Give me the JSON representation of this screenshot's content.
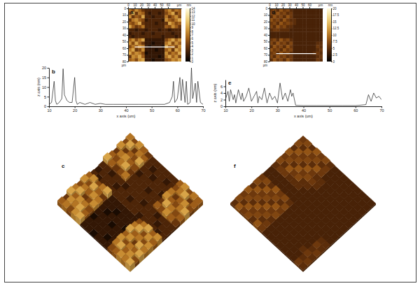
{
  "chart_data": [
    {
      "type": "heatmap",
      "panel": "a",
      "panel_3d": "c",
      "x_label": "µm",
      "y_label": "µm",
      "xlim": [
        0,
        80
      ],
      "ylim": [
        0,
        80
      ],
      "xticks": [
        0,
        10,
        20,
        30,
        40,
        50,
        60
      ],
      "yticks": [
        0,
        10,
        20,
        30,
        40,
        50,
        60,
        70,
        80
      ],
      "colorbar": {
        "label": "nm",
        "range": [
          0,
          14
        ],
        "ticks": [
          0,
          1,
          2,
          3,
          4,
          5,
          6,
          7,
          8,
          9,
          10,
          11,
          12,
          13,
          14
        ]
      },
      "profile": {
        "x": [
          10,
          70
        ],
        "y": 58
      },
      "cells": [
        [
          7,
          5,
          8,
          6,
          4,
          3,
          3,
          3,
          3,
          3,
          3,
          6,
          8,
          5,
          7,
          6
        ],
        [
          5,
          9,
          4,
          7,
          6,
          3,
          2,
          3,
          3,
          2,
          3,
          5,
          7,
          9,
          4,
          6
        ],
        [
          8,
          4,
          6,
          5,
          9,
          3,
          3,
          2,
          3,
          3,
          3,
          7,
          4,
          6,
          8,
          5
        ],
        [
          4,
          7,
          8,
          6,
          5,
          2,
          3,
          3,
          3,
          3,
          2,
          8,
          6,
          5,
          7,
          9
        ],
        [
          6,
          5,
          7,
          9,
          4,
          3,
          3,
          3,
          2,
          3,
          3,
          4,
          9,
          7,
          5,
          6
        ],
        [
          9,
          6,
          4,
          5,
          7,
          3,
          3,
          3,
          3,
          3,
          3,
          6,
          5,
          8,
          6,
          4
        ],
        [
          3,
          3,
          2,
          3,
          3,
          2,
          3,
          3,
          3,
          2,
          3,
          3,
          2,
          3,
          3,
          3
        ],
        [
          2,
          3,
          3,
          3,
          2,
          3,
          3,
          2,
          3,
          3,
          3,
          3,
          3,
          2,
          3,
          3
        ],
        [
          3,
          2,
          3,
          3,
          3,
          3,
          3,
          3,
          3,
          3,
          2,
          3,
          3,
          3,
          2,
          3
        ],
        [
          6,
          8,
          5,
          7,
          9,
          2,
          2,
          2,
          2,
          2,
          2,
          5,
          7,
          9,
          6,
          8
        ],
        [
          8,
          5,
          9,
          6,
          4,
          2,
          2,
          1,
          2,
          2,
          2,
          7,
          9,
          5,
          8,
          6
        ],
        [
          5,
          7,
          6,
          8,
          7,
          2,
          1,
          2,
          2,
          2,
          1,
          9,
          6,
          7,
          5,
          8
        ],
        [
          7,
          9,
          4,
          5,
          8,
          2,
          2,
          2,
          1,
          2,
          2,
          6,
          8,
          4,
          9,
          7
        ],
        [
          9,
          6,
          8,
          7,
          5,
          1,
          2,
          2,
          2,
          2,
          2,
          8,
          5,
          7,
          6,
          9
        ],
        [
          4,
          8,
          7,
          9,
          6,
          2,
          2,
          2,
          2,
          1,
          2,
          7,
          9,
          6,
          8,
          5
        ],
        [
          6,
          7,
          5,
          8,
          9,
          2,
          2,
          1,
          2,
          2,
          2,
          5,
          6,
          8,
          7,
          9
        ]
      ]
    },
    {
      "type": "line",
      "panel": "b",
      "x_label": "x axis (um)",
      "y_label": "z axis (nm)",
      "xlim": [
        10,
        70
      ],
      "ylim": [
        0,
        20
      ],
      "xticks": [
        10,
        20,
        30,
        40,
        50,
        60,
        70
      ],
      "yticks": [
        0,
        5,
        10,
        15,
        20
      ],
      "color": "#222222",
      "x": [
        10,
        11,
        12,
        12.5,
        13,
        14,
        15,
        15.5,
        16,
        17,
        18,
        19,
        20,
        20.5,
        21,
        22,
        24,
        26,
        28,
        30,
        32,
        35,
        40,
        45,
        50,
        55,
        57,
        58,
        58.5,
        59,
        60,
        61,
        61.5,
        62,
        63,
        63.5,
        64,
        65,
        65.5,
        66,
        67,
        67.5,
        68,
        69,
        70
      ],
      "values": [
        1,
        2,
        13,
        3,
        1,
        2,
        4,
        19.5,
        6,
        3,
        2,
        2,
        15,
        3,
        1,
        2,
        1,
        2,
        1,
        1.5,
        1,
        1,
        1,
        1,
        1,
        1,
        2,
        5,
        13,
        2,
        4,
        15,
        3,
        14,
        2,
        13,
        1,
        2,
        20,
        4,
        12,
        2,
        13,
        2,
        1
      ]
    },
    {
      "type": "heatmap",
      "panel": "d",
      "panel_3d": "f",
      "x_label": "µm",
      "y_label": "µm",
      "xlim": [
        0,
        80
      ],
      "ylim": [
        0,
        80
      ],
      "xticks": [
        0,
        10,
        20,
        30,
        40,
        50,
        60
      ],
      "yticks": [
        0,
        10,
        20,
        30,
        40,
        50,
        60,
        70,
        80
      ],
      "colorbar": {
        "label": "nm",
        "range": [
          0,
          20
        ],
        "ticks": [
          0,
          2.5,
          5,
          7.5,
          10,
          12.5,
          15,
          17.5,
          20
        ]
      },
      "profile": {
        "x": [
          10,
          70
        ],
        "y": 68
      },
      "cells": [
        [
          6,
          7,
          5,
          8,
          6,
          7,
          5,
          4,
          4,
          4,
          4,
          4,
          4,
          4,
          4,
          4
        ],
        [
          7,
          5,
          8,
          6,
          7,
          5,
          6,
          4,
          4,
          4,
          4,
          4,
          4,
          4,
          4,
          4
        ],
        [
          5,
          8,
          6,
          7,
          5,
          8,
          6,
          4,
          4,
          4,
          4,
          4,
          4,
          4,
          4,
          4
        ],
        [
          8,
          6,
          7,
          5,
          8,
          6,
          5,
          5,
          4,
          4,
          4,
          4,
          4,
          4,
          4,
          4
        ],
        [
          6,
          7,
          5,
          8,
          6,
          7,
          6,
          5,
          4,
          4,
          4,
          4,
          4,
          4,
          4,
          4
        ],
        [
          7,
          5,
          8,
          6,
          7,
          5,
          5,
          4,
          4,
          4,
          4,
          4,
          4,
          4,
          4,
          4
        ],
        [
          5,
          6,
          6,
          5,
          5,
          5,
          4,
          4,
          4,
          4,
          4,
          4,
          4,
          4,
          4,
          4
        ],
        [
          4,
          4,
          4,
          4,
          4,
          4,
          4,
          4,
          4,
          4,
          4,
          4,
          4,
          4,
          4,
          4
        ],
        [
          4,
          4,
          4,
          4,
          4,
          4,
          4,
          4,
          4,
          4,
          4,
          4,
          4,
          4,
          4,
          4
        ],
        [
          6,
          7,
          5,
          8,
          6,
          7,
          5,
          4,
          4,
          4,
          4,
          4,
          4,
          4,
          4,
          4
        ],
        [
          7,
          5,
          8,
          6,
          7,
          5,
          7,
          4,
          4,
          4,
          4,
          4,
          4,
          4,
          5,
          5
        ],
        [
          5,
          8,
          6,
          7,
          5,
          8,
          6,
          4,
          4,
          4,
          4,
          4,
          4,
          4,
          6,
          5
        ],
        [
          8,
          6,
          7,
          5,
          8,
          6,
          7,
          4,
          4,
          4,
          4,
          4,
          4,
          4,
          5,
          6
        ],
        [
          6,
          7,
          5,
          8,
          6,
          7,
          5,
          4,
          4,
          4,
          4,
          4,
          4,
          5,
          6,
          5
        ],
        [
          7,
          5,
          8,
          6,
          7,
          5,
          6,
          4,
          4,
          4,
          4,
          4,
          4,
          4,
          5,
          6
        ],
        [
          5,
          8,
          6,
          7,
          5,
          8,
          6,
          4,
          4,
          4,
          4,
          4,
          4,
          4,
          6,
          5
        ]
      ]
    },
    {
      "type": "line",
      "panel": "e",
      "x_label": "x axis (um)",
      "y_label": "z axis (nm)",
      "xlim": [
        10,
        70
      ],
      "ylim": [
        0,
        8
      ],
      "xticks": [
        10,
        20,
        30,
        40,
        50,
        60,
        70
      ],
      "yticks": [
        0,
        2,
        4,
        6
      ],
      "color": "#222222",
      "x": [
        10,
        11,
        11.5,
        12,
        13,
        13.5,
        14,
        15,
        16,
        16.5,
        17,
        18,
        19,
        20,
        21,
        22,
        22.5,
        23,
        24,
        25,
        26,
        27,
        28,
        29,
        30,
        31,
        32,
        33,
        34,
        35,
        35.5,
        36,
        37,
        40,
        45,
        50,
        55,
        60,
        64,
        65,
        66,
        67,
        68,
        69,
        70
      ],
      "values": [
        2,
        4.5,
        1.5,
        5,
        2,
        3.5,
        1,
        5,
        2,
        4,
        1.5,
        3,
        5.5,
        1.5,
        3,
        4.5,
        1,
        3,
        2,
        5.5,
        1,
        4,
        2,
        3,
        1,
        7,
        2,
        4,
        1.5,
        5,
        3,
        4,
        0.3,
        0.2,
        0.2,
        0.2,
        0.2,
        0.2,
        0.5,
        3.5,
        1.5,
        4,
        2.5,
        3,
        2
      ]
    }
  ]
}
